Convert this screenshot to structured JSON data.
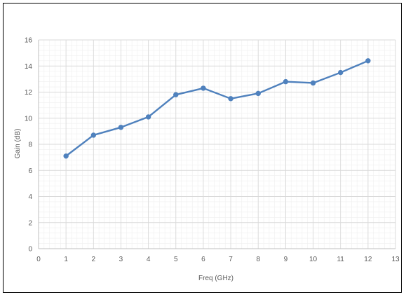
{
  "chart_data": {
    "type": "line",
    "title": "",
    "xlabel": "Freq (GHz)",
    "ylabel": "Gain (dB)",
    "xlim": [
      0,
      13
    ],
    "ylim": [
      0,
      16
    ],
    "x_ticks": [
      0,
      1,
      2,
      3,
      4,
      5,
      6,
      7,
      8,
      9,
      10,
      11,
      12,
      13
    ],
    "y_ticks": [
      0,
      2,
      4,
      6,
      8,
      10,
      12,
      14,
      16
    ],
    "grid": "major and minor",
    "legend": "none",
    "series": [
      {
        "x": [
          1,
          2,
          3,
          4,
          5,
          6,
          7,
          8,
          9,
          10,
          11,
          12
        ],
        "y": [
          7.1,
          8.7,
          9.3,
          10.1,
          11.8,
          12.3,
          11.5,
          11.9,
          12.8,
          12.7,
          13.5,
          14.4
        ],
        "color": "#4f81bd"
      }
    ],
    "colors": {
      "line": "#4f81bd",
      "major_grid": "#d9d9d9",
      "minor_grid": "#efefef",
      "text": "#595959"
    }
  }
}
